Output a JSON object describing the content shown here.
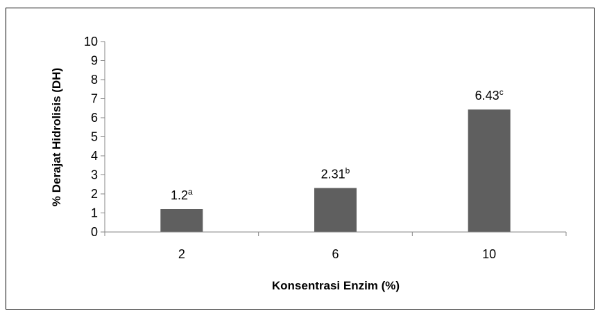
{
  "chart_data": {
    "type": "bar",
    "title": "",
    "xlabel": "Konsentrasi Enzim (%)",
    "ylabel": "% Derajat Hidrolisis (DH)",
    "ylim": [
      0,
      10
    ],
    "yticks": [
      0,
      1,
      2,
      3,
      4,
      5,
      6,
      7,
      8,
      9,
      10
    ],
    "grid": false,
    "categories": [
      "2",
      "6",
      "10"
    ],
    "values": [
      1.2,
      2.31,
      6.43
    ],
    "data_labels": [
      {
        "value": "1.2",
        "superscript": "a"
      },
      {
        "value": "2.31",
        "superscript": "b"
      },
      {
        "value": "6.43",
        "superscript": "c"
      }
    ],
    "bar_color": "#5f5f5f",
    "axis_color": "#868686"
  }
}
